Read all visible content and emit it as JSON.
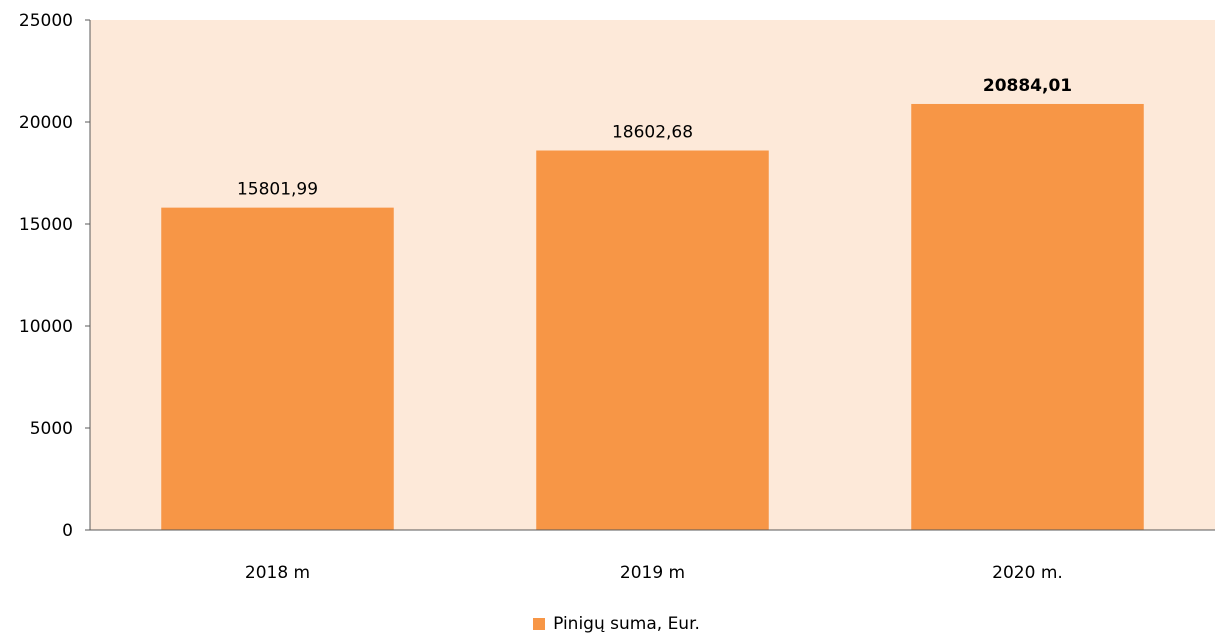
{
  "chart_data": {
    "type": "bar",
    "categories": [
      "2018 m",
      "2019 m",
      "2020 m."
    ],
    "series": [
      {
        "name": "Pinigų suma, Eur.",
        "values": [
          15801.99,
          18602.68,
          20884.01
        ]
      }
    ],
    "data_labels": [
      "15801,99",
      "18602,68",
      "20884,01"
    ],
    "yticks": [
      "0",
      "5000",
      "10000",
      "15000",
      "20000",
      "25000"
    ],
    "ylim": [
      0,
      25000
    ],
    "grid": false,
    "legend_position": "bottom",
    "colors": {
      "bar": "#f79646",
      "plot_background": "#fde9d9",
      "axis": "#595959"
    }
  }
}
